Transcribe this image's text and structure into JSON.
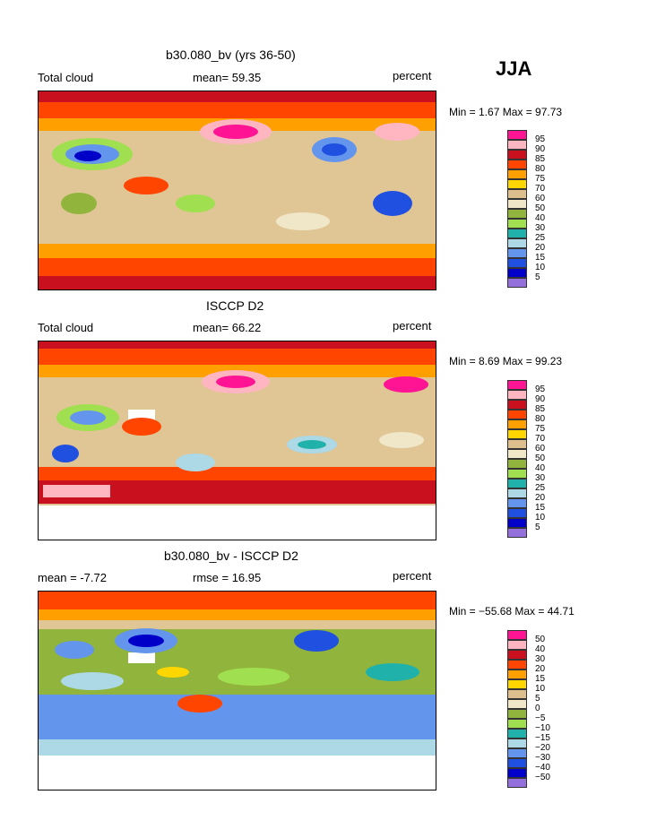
{
  "season": "JJA",
  "panels": [
    {
      "title": "b30.080_bv (yrs 36-50)",
      "left_label": "Total cloud",
      "center_label": "mean=  59.35",
      "right_label": "percent",
      "min_max": "Min =    1.67 Max =  97.73",
      "legend": [
        "95",
        "90",
        "85",
        "80",
        "75",
        "70",
        "60",
        "50",
        "40",
        "30",
        "25",
        "20",
        "15",
        "10",
        "5"
      ]
    },
    {
      "title": "ISCCP D2",
      "left_label": "Total cloud",
      "center_label": "mean=  66.22",
      "right_label": "percent",
      "min_max": "Min =    8.69 Max =  99.23",
      "legend": [
        "95",
        "90",
        "85",
        "80",
        "75",
        "70",
        "60",
        "50",
        "40",
        "30",
        "25",
        "20",
        "15",
        "10",
        "5"
      ]
    },
    {
      "title": "b30.080_bv - ISCCP D2",
      "left_label": "mean =   -7.72",
      "center_label": "rmse =  16.95",
      "right_label": "percent",
      "min_max": "Min = −55.68 Max =  44.71",
      "legend": [
        "50",
        "40",
        "30",
        "20",
        "15",
        "10",
        "5",
        "0",
        "−5",
        "−10",
        "−15",
        "−20",
        "−30",
        "−40",
        "−50"
      ]
    }
  ],
  "colors": [
    "#ff1493",
    "#ffb6c1",
    "#c8101e",
    "#ff4500",
    "#ffa000",
    "#ffd700",
    "#dcbf8c",
    "#f0e6c8",
    "#90b43c",
    "#a0e050",
    "#20b2aa",
    "#add8e6",
    "#6495ed",
    "#2050e0",
    "#0000c8",
    "#9370db"
  ]
}
